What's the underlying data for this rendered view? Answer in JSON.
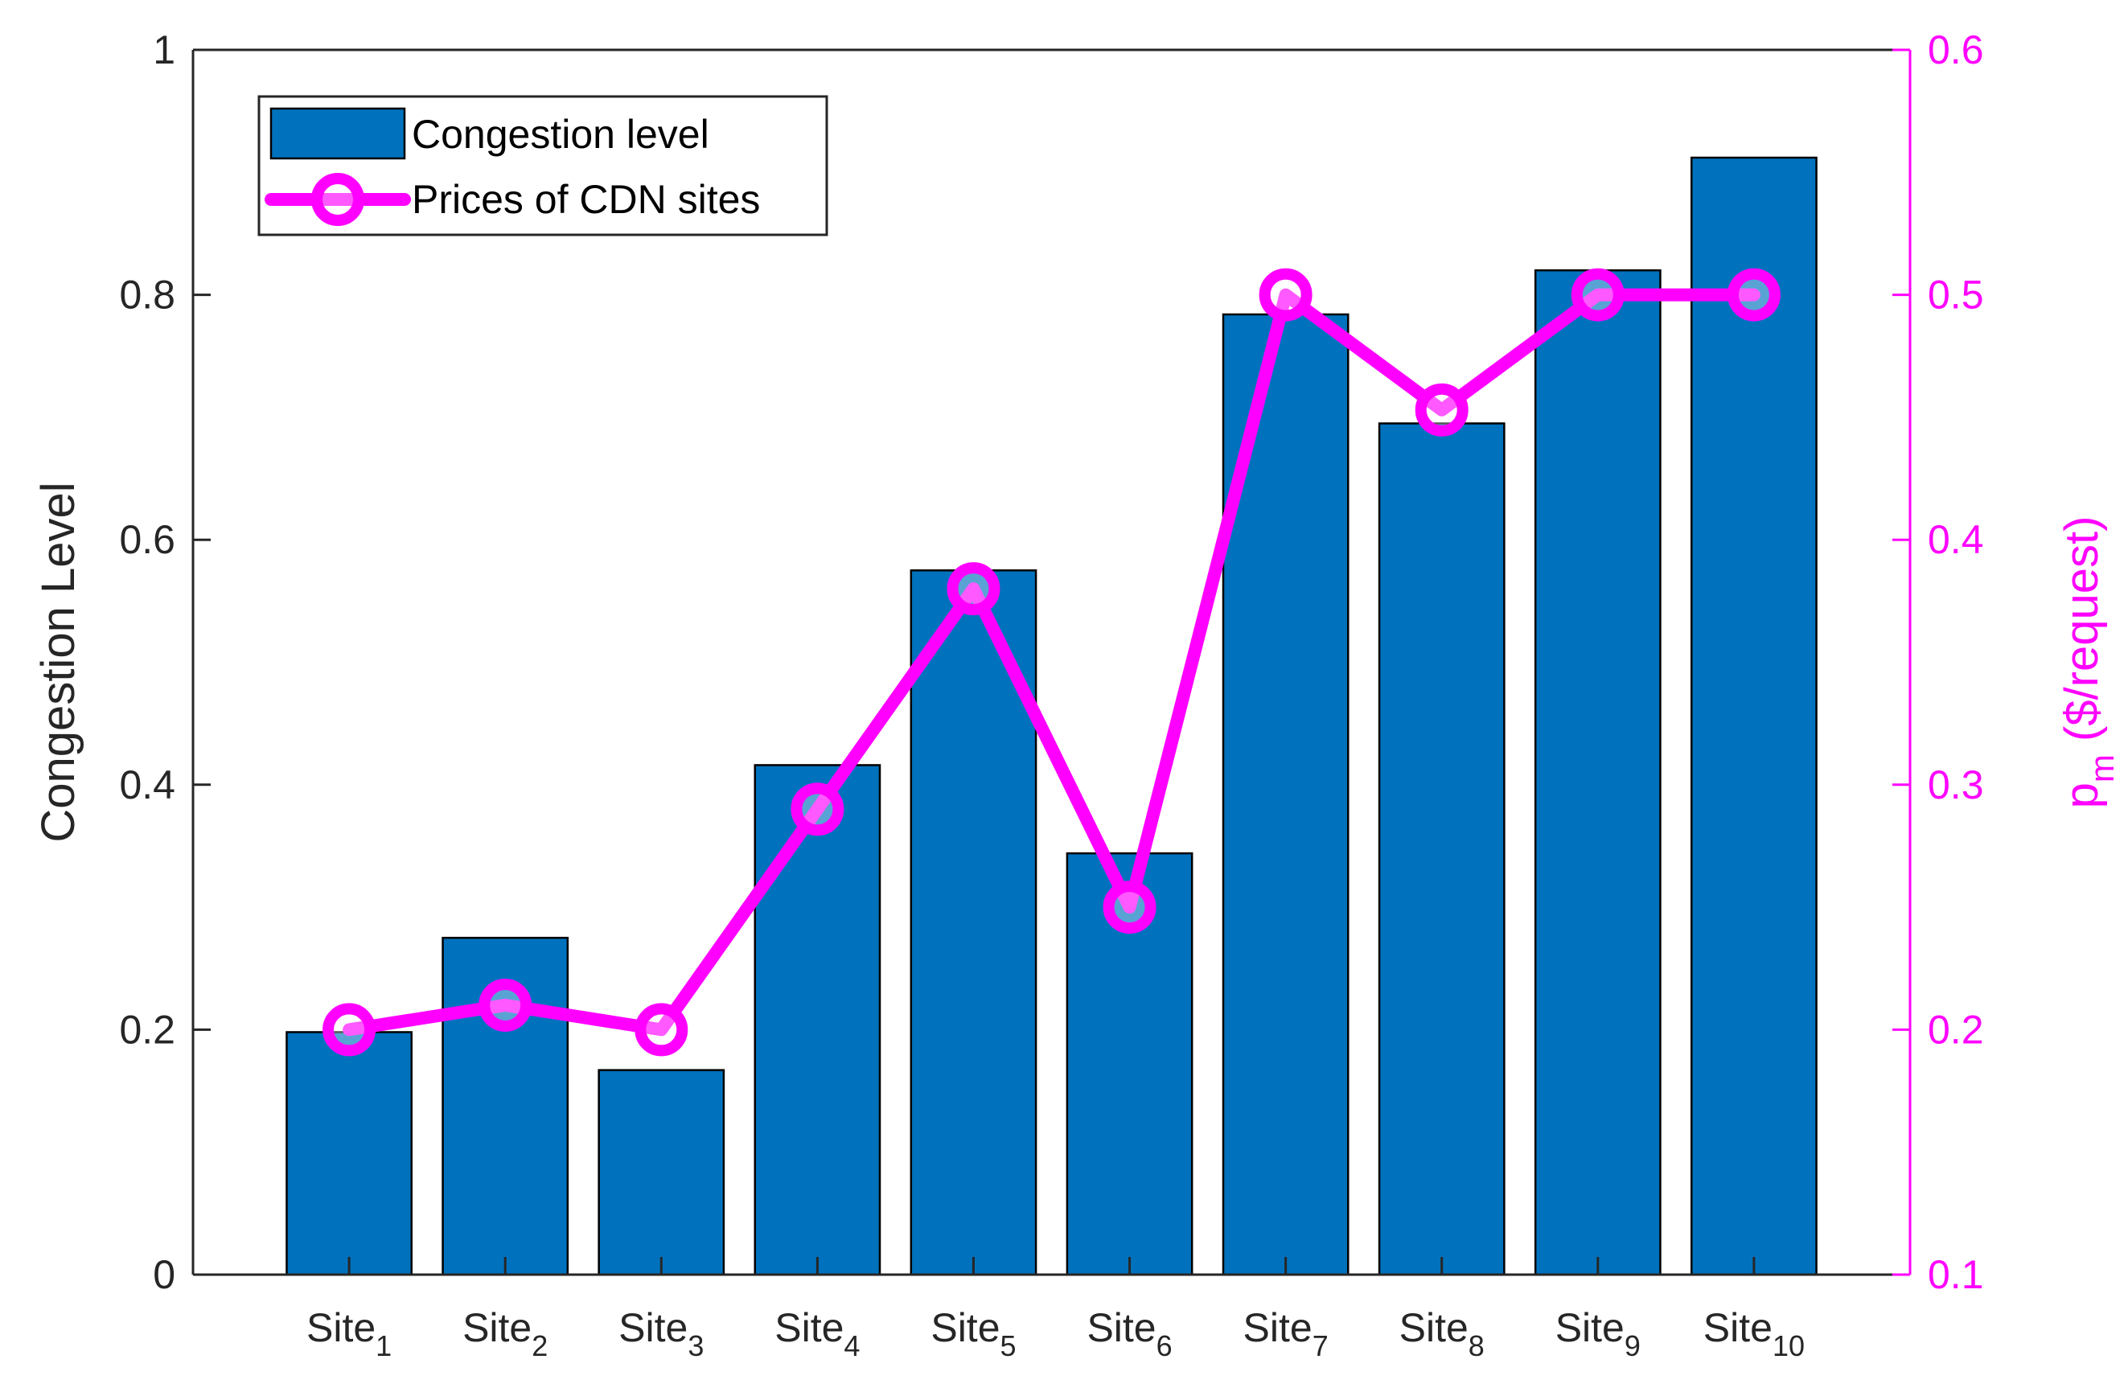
{
  "chart_data": {
    "type": "bar+line",
    "title": "",
    "categories": [
      {
        "base": "Site",
        "sub": "1"
      },
      {
        "base": "Site",
        "sub": "2"
      },
      {
        "base": "Site",
        "sub": "3"
      },
      {
        "base": "Site",
        "sub": "4"
      },
      {
        "base": "Site",
        "sub": "5"
      },
      {
        "base": "Site",
        "sub": "6"
      },
      {
        "base": "Site",
        "sub": "7"
      },
      {
        "base": "Site",
        "sub": "8"
      },
      {
        "base": "Site",
        "sub": "9"
      },
      {
        "base": "Site",
        "sub": "10"
      }
    ],
    "series": [
      {
        "name": "Congestion level",
        "type": "bar",
        "axis": "left",
        "color": "#0072BD",
        "values": [
          0.198,
          0.275,
          0.167,
          0.416,
          0.575,
          0.344,
          0.784,
          0.695,
          0.82,
          0.912
        ]
      },
      {
        "name": "Prices of CDN sites",
        "type": "line",
        "axis": "right",
        "color": "#FF00FF",
        "marker": "circle",
        "values": [
          0.2,
          0.21,
          0.2,
          0.29,
          0.38,
          0.25,
          0.5,
          0.453,
          0.5,
          0.5
        ]
      }
    ],
    "y_left": {
      "label": "Congestion Level",
      "lim": [
        0,
        1
      ],
      "ticks": [
        "0",
        "0.2",
        "0.4",
        "0.6",
        "0.8",
        "1"
      ],
      "tick_values": [
        0,
        0.2,
        0.4,
        0.6,
        0.8,
        1
      ],
      "color": "#262626"
    },
    "y_right": {
      "label_base": "p",
      "label_sub": "m",
      "label_rest": " ($/request)",
      "lim": [
        0.1,
        0.6
      ],
      "ticks": [
        "0.1",
        "0.2",
        "0.3",
        "0.4",
        "0.5",
        "0.6"
      ],
      "tick_values": [
        0.1,
        0.2,
        0.3,
        0.4,
        0.5,
        0.6
      ],
      "color": "#FF00FF"
    },
    "xlabel": "",
    "legend": {
      "position": "top-left",
      "entries": [
        "Congestion level",
        "Prices of CDN sites"
      ]
    },
    "grid": false
  }
}
